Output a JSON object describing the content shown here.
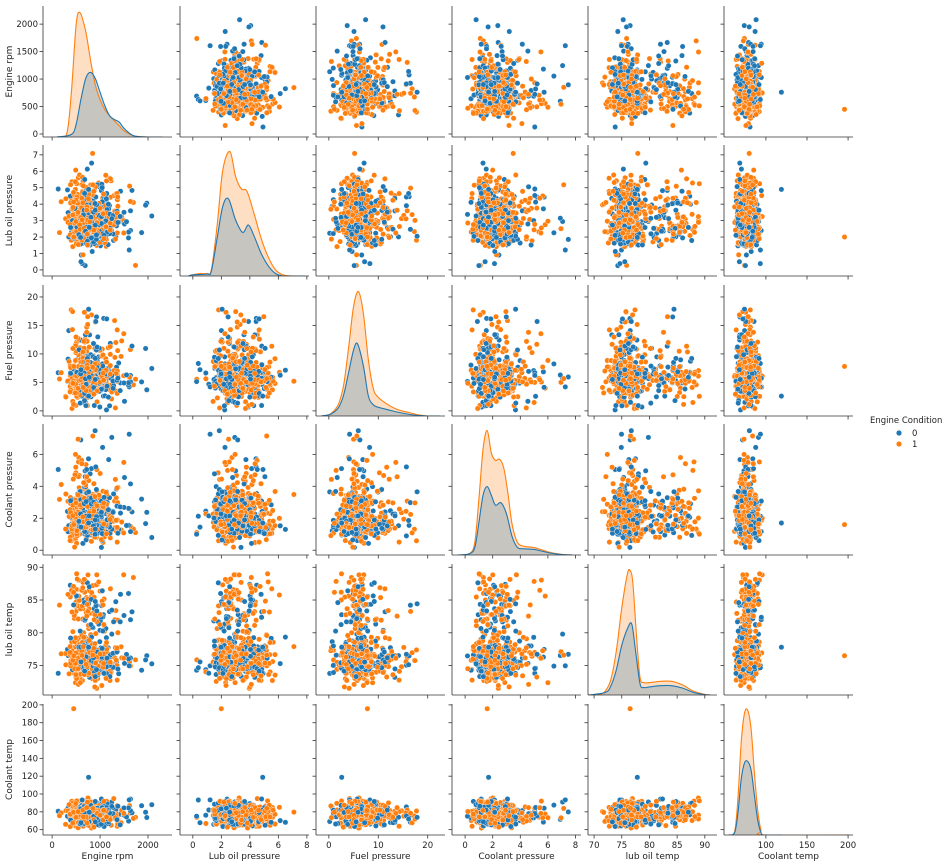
{
  "chart_data": {
    "type": "scatter",
    "kind": "pairplot",
    "diagonal": "kde",
    "off_diagonal": "scatter",
    "hue": "Engine Condition",
    "colors": {
      "0": "#1f77b4",
      "1": "#ff7f0e"
    },
    "legend": {
      "title": "Engine Condition",
      "placement": "right",
      "entries": [
        {
          "label": "0",
          "color": "#1f77b4"
        },
        {
          "label": "1",
          "color": "#ff7f0e"
        }
      ]
    },
    "grid": false,
    "variables": [
      {
        "label": "Engine rpm",
        "xlim": [
          -190,
          2500
        ],
        "ylim": [
          -55,
          2330
        ],
        "x_ticks": [
          0,
          1000,
          2000
        ],
        "y_ticks": [
          0,
          500,
          1000,
          1500,
          2000
        ],
        "data_range": {
          "0": [
            100,
            2240
          ],
          "1": [
            60,
            2200
          ]
        },
        "kde": {
          "1": [
            [
              100,
              0
            ],
            [
              300,
              0.02
            ],
            [
              400,
              0.35
            ],
            [
              500,
              0.9
            ],
            [
              580,
              1.0
            ],
            [
              700,
              0.85
            ],
            [
              800,
              0.62
            ],
            [
              900,
              0.42
            ],
            [
              1000,
              0.3
            ],
            [
              1100,
              0.22
            ],
            [
              1200,
              0.17
            ],
            [
              1300,
              0.13
            ],
            [
              1400,
              0.09
            ],
            [
              1500,
              0.05
            ],
            [
              1700,
              0.01
            ],
            [
              2000,
              0
            ],
            [
              2300,
              0
            ]
          ],
          "0": [
            [
              100,
              0
            ],
            [
              400,
              0.02
            ],
            [
              500,
              0.1
            ],
            [
              600,
              0.3
            ],
            [
              700,
              0.47
            ],
            [
              800,
              0.52
            ],
            [
              900,
              0.47
            ],
            [
              1000,
              0.36
            ],
            [
              1100,
              0.25
            ],
            [
              1200,
              0.17
            ],
            [
              1300,
              0.14
            ],
            [
              1400,
              0.12
            ],
            [
              1500,
              0.07
            ],
            [
              1700,
              0.01
            ],
            [
              2000,
              0
            ],
            [
              2300,
              0
            ]
          ]
        }
      },
      {
        "label": "Lub oil pressure",
        "xlim": [
          -0.9,
          8.15
        ],
        "ylim": [
          -0.37,
          7.6
        ],
        "x_ticks": [
          0,
          2,
          4,
          6,
          8
        ],
        "y_ticks": [
          0,
          1,
          2,
          3,
          4,
          5,
          6,
          7
        ],
        "data_range": {
          "0": [
            0,
            7.1
          ],
          "1": [
            0,
            7.3
          ]
        },
        "kde": {
          "1": [
            [
              -0.3,
              0
            ],
            [
              0,
              0.01
            ],
            [
              0.5,
              0.02
            ],
            [
              1,
              0.02
            ],
            [
              1.3,
              0.05
            ],
            [
              1.7,
              0.4
            ],
            [
              2.1,
              0.85
            ],
            [
              2.6,
              1.0
            ],
            [
              3.0,
              0.8
            ],
            [
              3.4,
              0.7
            ],
            [
              3.8,
              0.68
            ],
            [
              4.3,
              0.5
            ],
            [
              4.8,
              0.3
            ],
            [
              5.3,
              0.15
            ],
            [
              5.8,
              0.05
            ],
            [
              6.3,
              0.01
            ],
            [
              7,
              0
            ],
            [
              7.9,
              0
            ]
          ],
          "0": [
            [
              -0.3,
              0
            ],
            [
              0,
              0.01
            ],
            [
              1,
              0.015
            ],
            [
              1.3,
              0.04
            ],
            [
              1.7,
              0.3
            ],
            [
              2.1,
              0.56
            ],
            [
              2.5,
              0.62
            ],
            [
              3.0,
              0.45
            ],
            [
              3.5,
              0.35
            ],
            [
              3.9,
              0.41
            ],
            [
              4.3,
              0.32
            ],
            [
              4.8,
              0.18
            ],
            [
              5.3,
              0.08
            ],
            [
              5.8,
              0.02
            ],
            [
              6.3,
              0
            ],
            [
              7,
              0
            ],
            [
              7.9,
              0
            ]
          ]
        }
      },
      {
        "label": "Fuel pressure",
        "xlim": [
          -2.6,
          23.5
        ],
        "ylim": [
          -0.9,
          22.1
        ],
        "x_ticks": [
          0,
          10,
          20
        ],
        "y_ticks": [
          0,
          5,
          10,
          15,
          20
        ],
        "data_range": {
          "0": [
            0,
            20
          ],
          "1": [
            0,
            21.1
          ]
        },
        "kde": {
          "1": [
            [
              -1.5,
              0
            ],
            [
              0,
              0.01
            ],
            [
              1,
              0.04
            ],
            [
              2,
              0.1
            ],
            [
              3,
              0.25
            ],
            [
              4,
              0.55
            ],
            [
              5,
              0.88
            ],
            [
              6,
              1.0
            ],
            [
              7,
              0.82
            ],
            [
              8,
              0.45
            ],
            [
              9,
              0.22
            ],
            [
              10,
              0.15
            ],
            [
              12,
              0.09
            ],
            [
              14,
              0.05
            ],
            [
              16,
              0.03
            ],
            [
              18,
              0.01
            ],
            [
              20,
              0
            ],
            [
              22.5,
              0
            ]
          ],
          "0": [
            [
              -1.5,
              0
            ],
            [
              0,
              0.01
            ],
            [
              1,
              0.03
            ],
            [
              2,
              0.07
            ],
            [
              3,
              0.17
            ],
            [
              4,
              0.35
            ],
            [
              5,
              0.53
            ],
            [
              5.8,
              0.58
            ],
            [
              7,
              0.4
            ],
            [
              8,
              0.16
            ],
            [
              9,
              0.09
            ],
            [
              10,
              0.07
            ],
            [
              12,
              0.05
            ],
            [
              14,
              0.03
            ],
            [
              16,
              0.015
            ],
            [
              18,
              0.005
            ],
            [
              20,
              0
            ],
            [
              22.5,
              0
            ]
          ]
        }
      },
      {
        "label": "Coolant pressure",
        "xlim": [
          -0.95,
          8.4
        ],
        "ylim": [
          -0.3,
          7.9
        ],
        "x_ticks": [
          0,
          2,
          4,
          6,
          8
        ],
        "y_ticks": [
          0,
          2,
          4,
          6
        ],
        "data_range": {
          "0": [
            0,
            7.5
          ],
          "1": [
            0,
            7.5
          ]
        },
        "kde": {
          "1": [
            [
              -0.5,
              0
            ],
            [
              0.3,
              0.01
            ],
            [
              0.7,
              0.1
            ],
            [
              1.0,
              0.45
            ],
            [
              1.3,
              0.85
            ],
            [
              1.6,
              1.0
            ],
            [
              1.9,
              0.82
            ],
            [
              2.2,
              0.76
            ],
            [
              2.5,
              0.77
            ],
            [
              2.8,
              0.7
            ],
            [
              3.1,
              0.5
            ],
            [
              3.4,
              0.25
            ],
            [
              3.8,
              0.1
            ],
            [
              4.3,
              0.07
            ],
            [
              5,
              0.06
            ],
            [
              5.6,
              0.04
            ],
            [
              6.2,
              0.02
            ],
            [
              7,
              0.005
            ],
            [
              7.8,
              0
            ]
          ],
          "0": [
            [
              -0.5,
              0
            ],
            [
              0.3,
              0.01
            ],
            [
              0.7,
              0.06
            ],
            [
              1.0,
              0.26
            ],
            [
              1.3,
              0.48
            ],
            [
              1.6,
              0.55
            ],
            [
              1.9,
              0.48
            ],
            [
              2.2,
              0.4
            ],
            [
              2.6,
              0.42
            ],
            [
              3.0,
              0.33
            ],
            [
              3.4,
              0.15
            ],
            [
              3.8,
              0.06
            ],
            [
              4.3,
              0.05
            ],
            [
              5,
              0.045
            ],
            [
              5.6,
              0.03
            ],
            [
              6.2,
              0.015
            ],
            [
              7,
              0.004
            ],
            [
              7.8,
              0
            ]
          ]
        }
      },
      {
        "label": "lub oil temp",
        "xlim": [
          68.9,
          92.2
        ],
        "ylim": [
          70.5,
          90.5
        ],
        "x_ticks": [
          70,
          75,
          80,
          85,
          90
        ],
        "y_ticks": [
          75,
          80,
          85,
          90
        ],
        "data_range": {
          "0": [
            72,
            89.6
          ],
          "1": [
            71.3,
            89.5
          ]
        },
        "kde": {
          "1": [
            [
              69,
              0
            ],
            [
              71,
              0.005
            ],
            [
              72,
              0.03
            ],
            [
              73,
              0.12
            ],
            [
              74,
              0.35
            ],
            [
              75,
              0.7
            ],
            [
              76,
              0.97
            ],
            [
              76.5,
              1.0
            ],
            [
              77,
              0.9
            ],
            [
              77.7,
              0.45
            ],
            [
              78.3,
              0.14
            ],
            [
              79,
              0.1
            ],
            [
              80,
              0.1
            ],
            [
              82,
              0.11
            ],
            [
              84,
              0.11
            ],
            [
              86,
              0.08
            ],
            [
              88,
              0.03
            ],
            [
              90,
              0.005
            ],
            [
              91,
              0
            ]
          ],
          "0": [
            [
              69,
              0
            ],
            [
              72,
              0.02
            ],
            [
              73,
              0.07
            ],
            [
              74,
              0.2
            ],
            [
              75,
              0.4
            ],
            [
              76,
              0.53
            ],
            [
              76.8,
              0.57
            ],
            [
              77.5,
              0.35
            ],
            [
              78.3,
              0.09
            ],
            [
              79,
              0.06
            ],
            [
              80,
              0.065
            ],
            [
              82,
              0.075
            ],
            [
              84,
              0.075
            ],
            [
              86,
              0.055
            ],
            [
              88,
              0.02
            ],
            [
              90,
              0.003
            ],
            [
              91,
              0
            ]
          ]
        }
      },
      {
        "label": "Coolant temp",
        "xlim": [
          49,
          206
        ],
        "ylim": [
          54,
          201
        ],
        "x_ticks": [
          100,
          150,
          200
        ],
        "y_ticks": [
          60,
          80,
          100,
          120,
          140,
          160,
          180,
          200
        ],
        "data_range": {
          "0": [
            61,
            96
          ],
          "1": [
            61,
            96
          ]
        },
        "kde": {
          "1": [
            [
              55,
              0
            ],
            [
              62,
              0.03
            ],
            [
              66,
              0.3
            ],
            [
              70,
              0.75
            ],
            [
              74,
              0.98
            ],
            [
              78,
              1.0
            ],
            [
              82,
              0.85
            ],
            [
              86,
              0.5
            ],
            [
              90,
              0.2
            ],
            [
              94,
              0.04
            ],
            [
              98,
              0
            ],
            [
              200,
              0
            ]
          ],
          "0": [
            [
              55,
              0
            ],
            [
              62,
              0.02
            ],
            [
              66,
              0.18
            ],
            [
              70,
              0.45
            ],
            [
              74,
              0.58
            ],
            [
              78,
              0.59
            ],
            [
              82,
              0.52
            ],
            [
              86,
              0.32
            ],
            [
              90,
              0.12
            ],
            [
              94,
              0.02
            ],
            [
              98,
              0
            ],
            [
              120,
              0
            ]
          ]
        }
      }
    ],
    "outliers": [
      {
        "class": "1",
        "values": [
          450,
          2.0,
          7.8,
          1.6,
          76.5,
          195.7
        ]
      },
      {
        "class": "0",
        "values": [
          760,
          4.9,
          2.6,
          1.7,
          77.8,
          118.8
        ]
      }
    ]
  }
}
